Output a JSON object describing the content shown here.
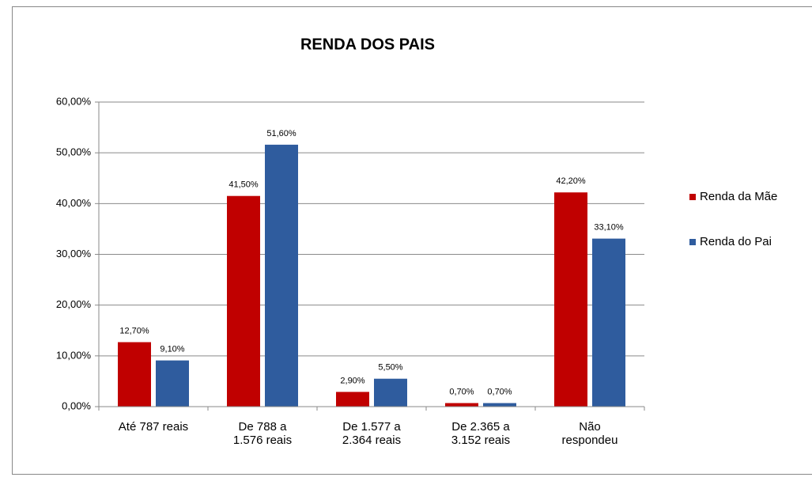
{
  "chart_data": {
    "type": "bar",
    "title": "RENDA DOS PAIS",
    "categories": [
      "Até 787 reais",
      "De 788 a\n1.576 reais",
      "De 1.577 a\n2.364 reais",
      "De 2.365 a\n3.152 reais",
      "Não\nrespondeu"
    ],
    "series": [
      {
        "name": "Renda da Mãe",
        "color": "#c00000",
        "values": [
          12.7,
          41.5,
          2.9,
          0.7,
          42.2
        ],
        "value_labels": [
          "12,70%",
          "41,50%",
          "2,90%",
          "0,70%",
          "42,20%"
        ]
      },
      {
        "name": "Renda do Pai",
        "color": "#2f5c9e",
        "values": [
          9.1,
          51.6,
          5.5,
          0.7,
          33.1
        ],
        "value_labels": [
          "9,10%",
          "51,60%",
          "5,50%",
          "0,70%",
          "33,10%"
        ]
      }
    ],
    "ylim": [
      0,
      60
    ],
    "yticks": [
      {
        "value": 0,
        "label": "0,00%"
      },
      {
        "value": 10,
        "label": "10,00%"
      },
      {
        "value": 20,
        "label": "20,00%"
      },
      {
        "value": 30,
        "label": "30,00%"
      },
      {
        "value": 40,
        "label": "40,00%"
      },
      {
        "value": 50,
        "label": "50,00%"
      },
      {
        "value": 60,
        "label": "60,00%"
      }
    ],
    "grid": true,
    "legend": "right"
  }
}
